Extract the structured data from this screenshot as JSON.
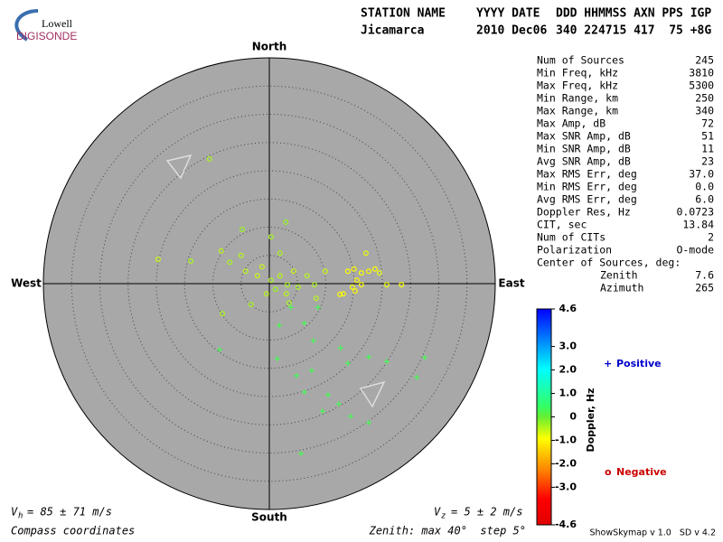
{
  "header": {
    "logo": {
      "top": "Lowell",
      "bottom": "DIGISONDE"
    },
    "columns": [
      {
        "label": "STATION NAME",
        "value": "Jicamarca"
      },
      {
        "label": "YYYY DATE",
        "value": "2010 Dec06"
      },
      {
        "label": "DDD HHMMSS AXN PPS IGP",
        "value": "340 224715 417  75 +8G"
      }
    ]
  },
  "skymap": {
    "directions": {
      "north": "North",
      "south": "South",
      "east": "East",
      "west": "West"
    },
    "zenith_max": 40,
    "zenith_step": 5,
    "points": [
      {
        "east": -10.6,
        "north": 22.1,
        "doppler": -0.4
      },
      {
        "east": -19.7,
        "north": 4.3,
        "doppler": -0.6
      },
      {
        "east": -13.9,
        "north": 4.0,
        "doppler": -0.4
      },
      {
        "east": -8.5,
        "north": 5.8,
        "doppler": -0.5
      },
      {
        "east": -7.0,
        "north": 3.8,
        "doppler": -0.4
      },
      {
        "east": -4.8,
        "north": 9.6,
        "doppler": -0.3
      },
      {
        "east": -4.2,
        "north": 2.2,
        "doppler": -0.5
      },
      {
        "east": -2.1,
        "north": 1.4,
        "doppler": -0.6
      },
      {
        "east": 0.3,
        "north": 0.6,
        "doppler": -0.4
      },
      {
        "east": 1.9,
        "north": 1.4,
        "doppler": -0.5
      },
      {
        "east": 3.2,
        "north": -0.2,
        "doppler": -0.4
      },
      {
        "east": 4.3,
        "north": 2.2,
        "doppler": -0.6
      },
      {
        "east": 1.1,
        "north": -1.0,
        "doppler": -0.3
      },
      {
        "east": 3.0,
        "north": -1.8,
        "doppler": -0.5
      },
      {
        "east": 5.1,
        "north": -0.6,
        "doppler": -0.4
      },
      {
        "east": -0.5,
        "north": -1.8,
        "doppler": -0.5
      },
      {
        "east": 3.5,
        "north": -3.4,
        "doppler": -0.4
      },
      {
        "east": -1.3,
        "north": 3.0,
        "doppler": -0.6
      },
      {
        "east": 6.7,
        "north": 1.4,
        "doppler": -0.5
      },
      {
        "east": 8.0,
        "north": -0.2,
        "doppler": -0.4
      },
      {
        "east": 9.9,
        "north": 2.2,
        "doppler": -0.6
      },
      {
        "east": -8.3,
        "north": -5.3,
        "doppler": -0.4
      },
      {
        "east": -3.2,
        "north": -3.7,
        "doppler": -0.4
      },
      {
        "east": 8.3,
        "north": -2.6,
        "doppler": -0.5
      },
      {
        "east": 13.9,
        "north": 2.2,
        "doppler": -0.9
      },
      {
        "east": 15.0,
        "north": 2.6,
        "doppler": -1.0
      },
      {
        "east": 16.3,
        "north": 1.9,
        "doppler": -0.9
      },
      {
        "east": 17.6,
        "north": 2.2,
        "doppler": -1.0
      },
      {
        "east": 18.7,
        "north": 2.6,
        "doppler": -0.9
      },
      {
        "east": 15.5,
        "north": 0.6,
        "doppler": -1.0
      },
      {
        "east": 14.7,
        "north": -0.6,
        "doppler": -0.9
      },
      {
        "east": 16.3,
        "north": -0.2,
        "doppler": -1.0
      },
      {
        "east": 19.5,
        "north": 1.9,
        "doppler": -0.8
      },
      {
        "east": 13.1,
        "north": -1.8,
        "doppler": -0.9
      },
      {
        "east": 15.2,
        "north": -1.3,
        "doppler": -1.0
      },
      {
        "east": 17.1,
        "north": 5.4,
        "doppler": -0.8
      },
      {
        "east": 20.8,
        "north": -0.2,
        "doppler": -0.8
      },
      {
        "east": 23.4,
        "north": -0.2,
        "doppler": -0.9
      },
      {
        "east": 1.9,
        "north": 5.4,
        "doppler": -0.4
      },
      {
        "east": 2.9,
        "north": 10.9,
        "doppler": -0.3
      },
      {
        "east": 0.3,
        "north": 8.3,
        "doppler": -0.4
      },
      {
        "east": -5.0,
        "north": 5.0,
        "doppler": -0.5
      },
      {
        "east": 12.5,
        "north": -1.9,
        "doppler": -0.9
      },
      {
        "east": 1.8,
        "north": -7.4,
        "doppler": 0.3
      },
      {
        "east": 6.2,
        "north": -7.0,
        "doppler": 0.3
      },
      {
        "east": 7.8,
        "north": -10.1,
        "doppler": 0.3
      },
      {
        "east": -8.8,
        "north": -11.7,
        "doppler": 0.3
      },
      {
        "east": 1.4,
        "north": -13.3,
        "doppler": 0.3
      },
      {
        "east": 13.9,
        "north": -14.1,
        "doppler": 0.3
      },
      {
        "east": 17.6,
        "north": -13.0,
        "doppler": 0.3
      },
      {
        "east": 20.8,
        "north": -13.8,
        "doppler": 0.3
      },
      {
        "east": 27.5,
        "north": -13.1,
        "doppler": 0.3
      },
      {
        "east": 26.1,
        "north": -16.6,
        "doppler": 0.3
      },
      {
        "east": 4.8,
        "north": -16.3,
        "doppler": 0.3
      },
      {
        "east": 7.5,
        "north": -15.4,
        "doppler": 0.3
      },
      {
        "east": 6.2,
        "north": -19.2,
        "doppler": 0.3
      },
      {
        "east": 10.4,
        "north": -19.7,
        "doppler": 0.3
      },
      {
        "east": 12.3,
        "north": -21.3,
        "doppler": 0.3
      },
      {
        "east": 14.4,
        "north": -23.5,
        "doppler": 0.3
      },
      {
        "east": 9.4,
        "north": -22.6,
        "doppler": 0.3
      },
      {
        "east": 17.6,
        "north": -24.6,
        "doppler": 0.3
      },
      {
        "east": 5.6,
        "north": -30.1,
        "doppler": 0.3
      },
      {
        "east": 12.6,
        "north": -11.4,
        "doppler": 0.3
      },
      {
        "east": 8.6,
        "north": -4.2,
        "doppler": 0.3
      },
      {
        "east": 3.8,
        "north": -4.2,
        "doppler": 0.3
      }
    ]
  },
  "stats": {
    "rows": [
      [
        "Num of Sources",
        "245"
      ],
      [
        "Min Freq, kHz",
        "3810"
      ],
      [
        "Max Freq, kHz",
        "5300"
      ],
      [
        "Min Range, km",
        "250"
      ],
      [
        "Max Range, km",
        "340"
      ],
      [
        "Max Amp, dB",
        "72"
      ],
      [
        "Max SNR Amp, dB",
        "51"
      ],
      [
        "Min SNR Amp, dB",
        "11"
      ],
      [
        "Avg SNR Amp, dB",
        "23"
      ],
      [
        "Max RMS Err, deg",
        "37.0"
      ],
      [
        "Min RMS Err, deg",
        "0.0"
      ],
      [
        "Avg RMS Err, deg",
        "6.0"
      ],
      [
        "Doppler Res, Hz",
        "0.0723"
      ],
      [
        "CIT, sec",
        "13.84"
      ],
      [
        "Num of CITs",
        "2"
      ],
      [
        "Polarization",
        "O-mode"
      ]
    ],
    "center": {
      "label": "Center of Sources, deg:",
      "rows": [
        [
          "Zenith",
          "7.6"
        ],
        [
          "Azimuth",
          "265"
        ]
      ]
    }
  },
  "colorbar": {
    "title": "Doppler, Hz",
    "range": [
      -4.6,
      4.6
    ],
    "ticks": [
      4.6,
      {
        "value": 3,
        "label": "3.0"
      },
      {
        "value": 2,
        "label": "2.0"
      },
      {
        "value": 1,
        "label": "1.0"
      },
      0,
      {
        "value": -1,
        "label": "-1.0"
      },
      {
        "value": -2,
        "label": "-2.0"
      },
      {
        "value": -3,
        "label": "-3.0"
      },
      -4.6
    ]
  },
  "legend": {
    "positive": {
      "symbol": "+",
      "label": "Positive"
    },
    "negative": {
      "symbol": "o",
      "label": "Negative"
    }
  },
  "footer": {
    "vh": {
      "symbol": "V",
      "subscript": "h",
      "text": "= 85 ± 71 m/s"
    },
    "vz": {
      "symbol": "V",
      "subscript": "z",
      "text": "= 5 ± 2 m/s"
    },
    "coords": "Compass coordinates",
    "zenith": "Zenith: max 40°  step 5°",
    "version": "ShowSkymap v 1.0   SD v 4.2"
  }
}
